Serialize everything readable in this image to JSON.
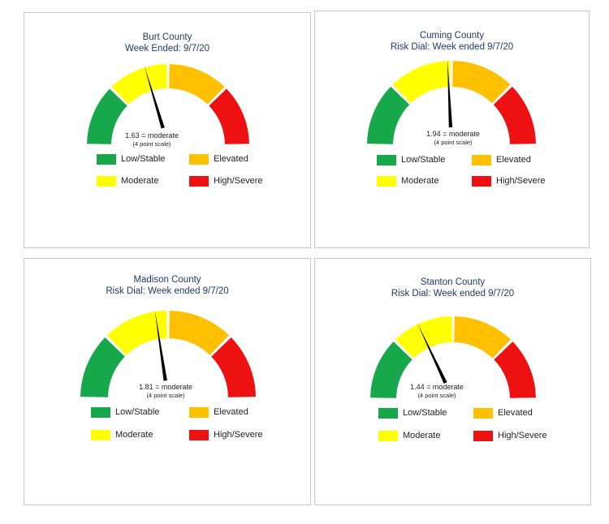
{
  "legend": {
    "low": {
      "label": "Low/Stable",
      "color": "#17a84b"
    },
    "moderate": {
      "label": "Moderate",
      "color": "#ffff00"
    },
    "elevated": {
      "label": "Elevated",
      "color": "#ffc000"
    },
    "high": {
      "label": "High/Severe",
      "color": "#ee1111"
    }
  },
  "chart_data": [
    {
      "type": "gauge",
      "title": "Burt County",
      "subtitle": "Week Ended: 9/7/20",
      "value": 1.63,
      "value_label": "1.63 = moderate",
      "scale_label": "(4 point scale)",
      "range": [
        0,
        4
      ]
    },
    {
      "type": "gauge",
      "title": "Cuming County",
      "subtitle": "Risk Dial: Week ended 9/7/20",
      "value": 1.94,
      "value_label": "1.94 = moderate",
      "scale_label": "(4 point scale)",
      "range": [
        0,
        4
      ]
    },
    {
      "type": "gauge",
      "title": "Madison County",
      "subtitle": "Risk Dial: Week ended 9/7/20",
      "value": 1.81,
      "value_label": "1.81 = moderate",
      "scale_label": "(4 point scale)",
      "range": [
        0,
        4
      ]
    },
    {
      "type": "gauge",
      "title": "Stanton County",
      "subtitle": "Risk Dial: Week ended 9/7/20",
      "value": 1.44,
      "value_label": "1.44 = moderate",
      "scale_label": "(4 point scale)",
      "range": [
        0,
        4
      ]
    }
  ]
}
